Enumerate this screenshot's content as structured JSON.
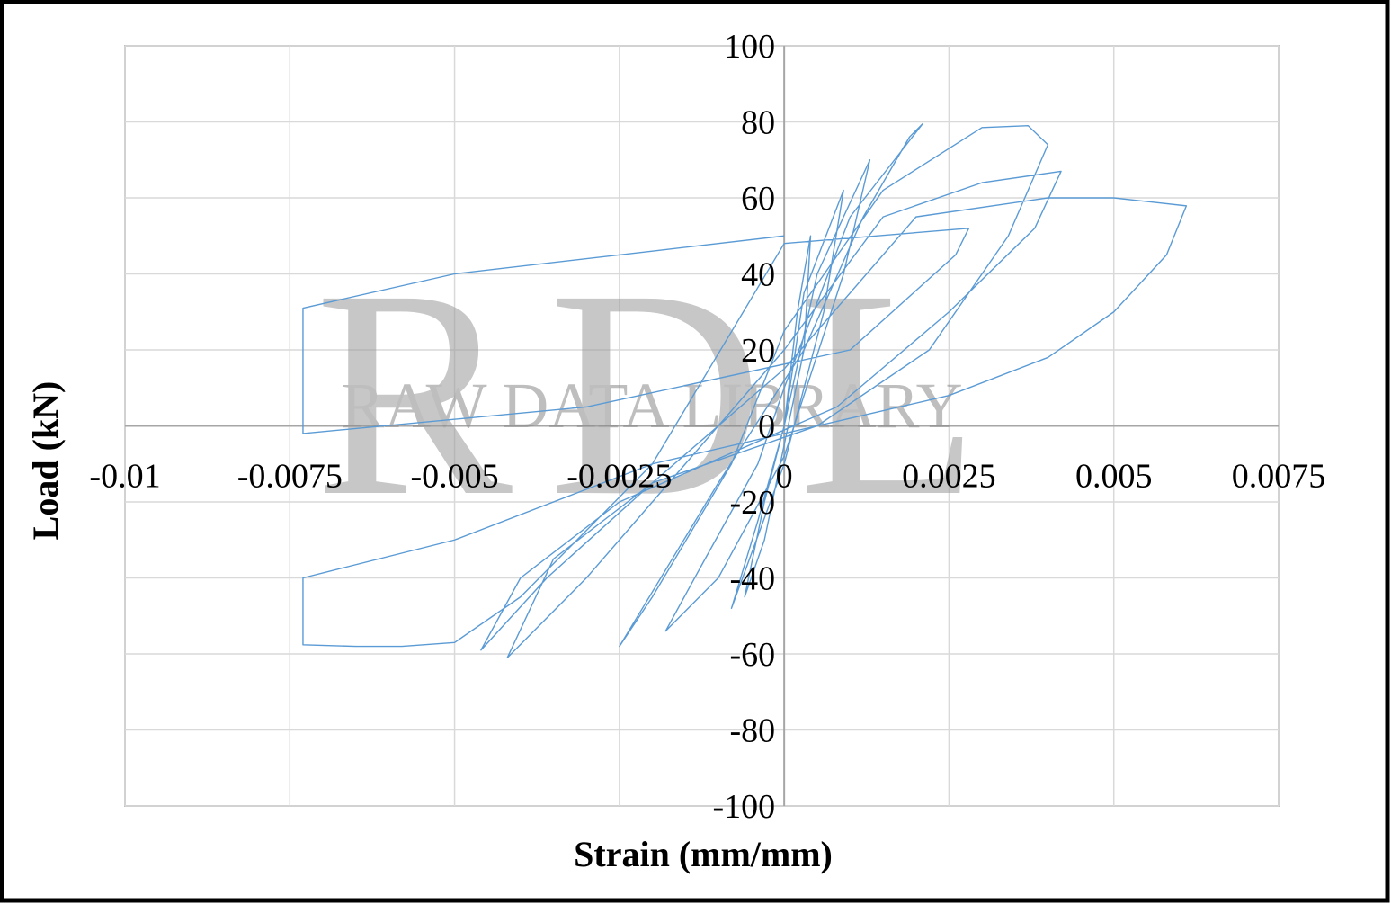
{
  "chart_data": {
    "type": "line",
    "x_label": "Strain (mm/mm)",
    "y_label": "Load (kN)",
    "watermark": {
      "logo": "RDL",
      "text": "RAW DATA LIBRARY"
    },
    "xlim": [
      -0.01,
      0.0075
    ],
    "xticks": [
      -0.01,
      -0.0075,
      -0.005,
      -0.0025,
      0,
      0.0025,
      0.005,
      0.0075
    ],
    "ylim": [
      -100,
      100
    ],
    "yticks": [
      -100,
      -80,
      -60,
      -40,
      -20,
      0,
      20,
      40,
      60,
      80,
      100
    ],
    "grid": true,
    "x": [
      0,
      0.0002,
      0.0004,
      0.0003,
      0,
      -0.0003,
      -0.0006,
      -0.0003,
      0,
      0.0003,
      0.0009,
      0.0006,
      0,
      -0.0008,
      -0.0004,
      0,
      0.0005,
      0.0013,
      0.0009,
      0,
      -0.001,
      -0.0018,
      -0.0012,
      -0.0004,
      0,
      0.001,
      0.0021,
      0.0019,
      0.0012,
      0.0003,
      -0.001,
      -0.0025,
      -0.002,
      -0.0008,
      0,
      0.0015,
      0.003,
      0.0037,
      0.004,
      0.0034,
      0.0022,
      0.0005,
      -0.002,
      -0.0035,
      -0.0042,
      -0.003,
      -0.0015,
      0,
      0.0015,
      0.003,
      0.0042,
      0.0038,
      0.0025,
      0.0008,
      -0.0025,
      -0.004,
      -0.0046,
      -0.0036,
      -0.002,
      0,
      0.002,
      0.004,
      0.005,
      0.0061,
      0.0058,
      0.005,
      0.004,
      0.0025,
      0.001,
      -0.002,
      -0.005,
      -0.0073,
      -0.0073,
      -0.0065,
      -0.0058,
      -0.005,
      -0.004,
      -0.002,
      0,
      0.0028,
      0.0026,
      0.001,
      -0.003,
      -0.0073,
      -0.0073,
      -0.005,
      -0.002,
      0
    ],
    "series": [
      {
        "color": "#5b9bd5",
        "values": [
          0,
          30,
          50,
          20,
          -5,
          -30,
          -45,
          -20,
          0,
          35,
          62,
          30,
          -10,
          -48,
          -25,
          0,
          40,
          70,
          40,
          -8,
          -40,
          -54,
          -35,
          -10,
          10,
          55,
          79.5,
          76,
          55,
          20,
          -15,
          -58,
          -45,
          -10,
          25,
          62,
          78.5,
          79,
          74,
          50,
          20,
          0,
          -15,
          -35,
          -61,
          -40,
          -10,
          20,
          55,
          64,
          67,
          52,
          30,
          5,
          -20,
          -40,
          -59,
          -40,
          -15,
          15,
          55,
          60,
          60,
          57.9,
          45,
          30,
          18,
          8,
          2,
          -10,
          -30,
          -40,
          -57.6,
          -58,
          -58,
          -57,
          -45,
          -10,
          48,
          52,
          45,
          20,
          5,
          -2,
          31,
          40,
          46,
          50
        ]
      }
    ]
  }
}
